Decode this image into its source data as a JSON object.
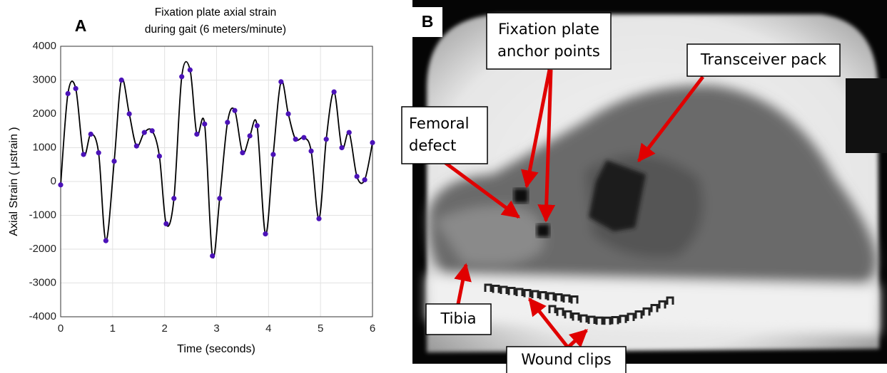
{
  "chart_data": {
    "type": "line",
    "panel_label": "A",
    "title": [
      "Fixation plate axial strain",
      "during gait (6 meters/minute)"
    ],
    "x_label": "Time (seconds)",
    "y_label": "Axial Strain ( μstrain )",
    "x": [
      0,
      0.14,
      0.29,
      0.44,
      0.58,
      0.73,
      0.87,
      1.03,
      1.17,
      1.32,
      1.46,
      1.61,
      1.76,
      1.9,
      2.03,
      2.18,
      2.33,
      2.49,
      2.62,
      2.77,
      2.92,
      3.06,
      3.21,
      3.35,
      3.5,
      3.64,
      3.78,
      3.94,
      4.09,
      4.24,
      4.38,
      4.52,
      4.68,
      4.82,
      4.97,
      5.11,
      5.26,
      5.41,
      5.55,
      5.7,
      5.85,
      6
    ],
    "series": [
      {
        "color": "#000000",
        "marker_color": "#4b12b8",
        "values": [
          -100,
          2600,
          2750,
          800,
          1400,
          850,
          -1750,
          600,
          3000,
          2000,
          1050,
          1450,
          1500,
          750,
          -1250,
          -500,
          3100,
          3300,
          1400,
          1700,
          -2200,
          -500,
          1750,
          2100,
          850,
          1350,
          1650,
          -1550,
          800,
          2950,
          2000,
          1250,
          1300,
          900,
          -1100,
          1250,
          2650,
          1000,
          1450,
          150,
          50,
          1150
        ]
      }
    ],
    "xlim": [
      0,
      6
    ],
    "xticks": [
      0,
      1,
      2,
      3,
      4,
      5,
      6
    ],
    "ylim": [
      -4000,
      4000
    ],
    "yticks": [
      -4000,
      -3000,
      -2000,
      -1000,
      0,
      1000,
      2000,
      3000,
      4000
    ],
    "grid": true
  },
  "xray_panel": {
    "label": "B",
    "callouts": [
      {
        "lines": [
          "Fixation plate",
          "anchor points"
        ]
      },
      {
        "lines": [
          "Transceiver pack"
        ]
      },
      {
        "lines": [
          "Femoral",
          "defect"
        ]
      },
      {
        "lines": [
          "Tibia"
        ]
      },
      {
        "lines": [
          "Wound clips"
        ]
      }
    ]
  }
}
